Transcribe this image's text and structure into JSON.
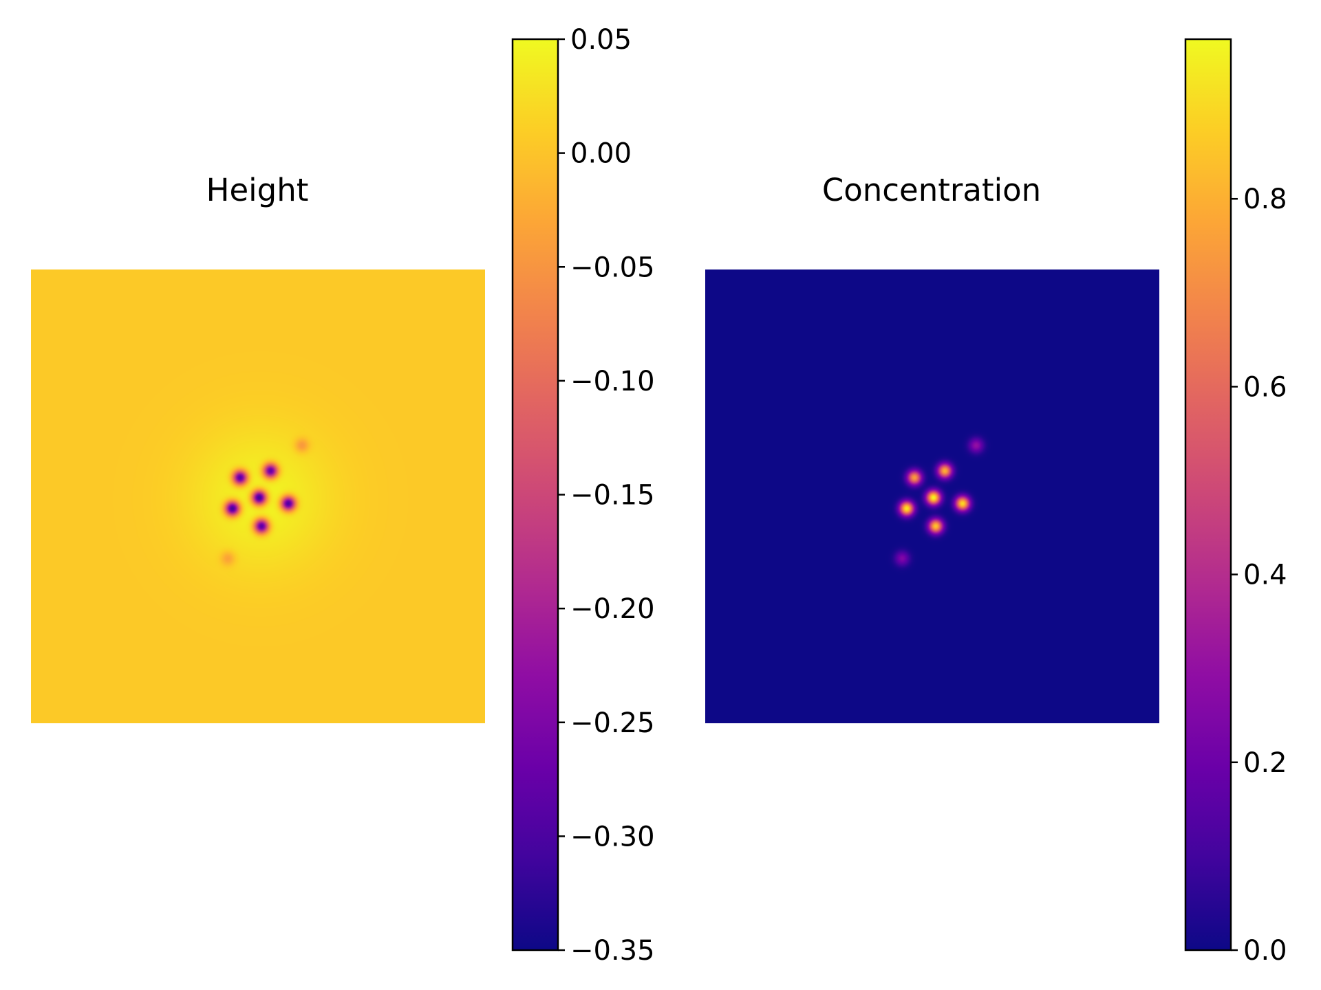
{
  "chart_data": [
    {
      "type": "heatmap",
      "title": "Height",
      "colormap": "plasma",
      "axes": "off",
      "background_value": 0.005,
      "features": [
        {
          "x": 0.502,
          "y": 0.502,
          "value": -0.35
        },
        {
          "x": 0.46,
          "y": 0.458,
          "value": -0.32
        },
        {
          "x": 0.527,
          "y": 0.443,
          "value": -0.31
        },
        {
          "x": 0.443,
          "y": 0.526,
          "value": -0.34
        },
        {
          "x": 0.566,
          "y": 0.515,
          "value": -0.33
        },
        {
          "x": 0.507,
          "y": 0.565,
          "value": -0.32
        },
        {
          "x": 0.596,
          "y": 0.387,
          "value": -0.06
        },
        {
          "x": 0.433,
          "y": 0.636,
          "value": -0.05
        }
      ],
      "halo": {
        "x": 0.505,
        "y": 0.505,
        "value": 0.05
      },
      "colorbar": {
        "vmin": -0.35,
        "vmax": 0.05,
        "ticks": [
          0.05,
          0.0,
          -0.05,
          -0.1,
          -0.15,
          -0.2,
          -0.25,
          -0.3,
          -0.35
        ],
        "tick_labels": [
          "0.05",
          "0.00",
          "−0.05",
          "−0.10",
          "−0.15",
          "−0.20",
          "−0.25",
          "−0.30",
          "−0.35"
        ]
      }
    },
    {
      "type": "heatmap",
      "title": "Concentration",
      "colormap": "plasma",
      "axes": "off",
      "background_value": 0.0,
      "features": [
        {
          "x": 0.502,
          "y": 0.502,
          "value": 0.96
        },
        {
          "x": 0.46,
          "y": 0.458,
          "value": 0.75
        },
        {
          "x": 0.527,
          "y": 0.443,
          "value": 0.8
        },
        {
          "x": 0.443,
          "y": 0.526,
          "value": 0.93
        },
        {
          "x": 0.566,
          "y": 0.515,
          "value": 0.9
        },
        {
          "x": 0.507,
          "y": 0.565,
          "value": 0.85
        },
        {
          "x": 0.596,
          "y": 0.387,
          "value": 0.3
        },
        {
          "x": 0.433,
          "y": 0.636,
          "value": 0.25
        }
      ],
      "colorbar": {
        "vmin": 0.0,
        "vmax": 0.97,
        "ticks": [
          0.8,
          0.6,
          0.4,
          0.2,
          0.0
        ],
        "tick_labels": [
          "0.8",
          "0.6",
          "0.4",
          "0.2",
          "0.0"
        ]
      }
    }
  ]
}
